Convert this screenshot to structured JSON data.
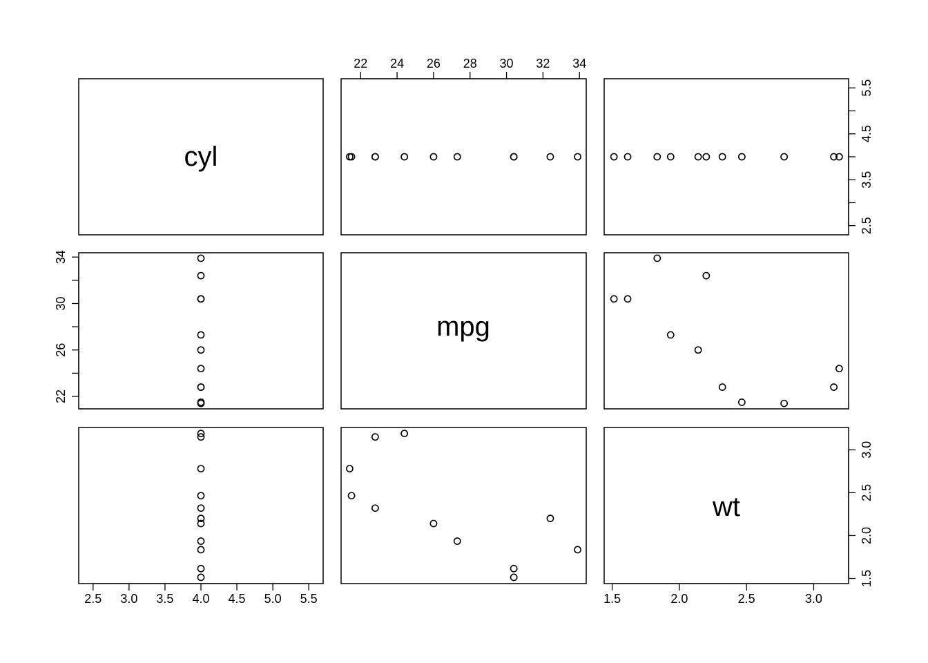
{
  "chart_data": {
    "type": "scatter",
    "title": "",
    "variables": [
      "cyl",
      "mpg",
      "wt"
    ],
    "axes": {
      "cyl": {
        "range": [
          2.3,
          5.7
        ],
        "ticks": [
          2.5,
          3.0,
          3.5,
          4.0,
          4.5,
          5.0,
          5.5
        ],
        "tick_labels": [
          "2.5",
          "3.0",
          "3.5",
          "4.0",
          "4.5",
          "5.0",
          "5.5"
        ],
        "minor_ticks": [
          3.0,
          4.0,
          5.0
        ]
      },
      "mpg": {
        "range": [
          20.93,
          34.37
        ],
        "ticks": [
          22,
          24,
          26,
          28,
          30,
          32,
          34
        ],
        "tick_labels": [
          "22",
          "24",
          "26",
          "28",
          "30",
          "32",
          "34"
        ],
        "minor_ticks": [
          24,
          28,
          32
        ]
      },
      "wt": {
        "range": [
          1.44,
          3.26
        ],
        "ticks": [
          1.5,
          2.0,
          2.5,
          3.0
        ],
        "tick_labels": [
          "1.5",
          "2.0",
          "2.5",
          "3.0"
        ],
        "minor_ticks": []
      }
    },
    "axis_annotations": {
      "cyl_bottom": {
        "ticks": [
          2.5,
          3.0,
          3.5,
          4.0,
          4.5,
          5.0,
          5.5
        ],
        "labels": [
          "2.5",
          "3.0",
          "3.5",
          "4.0",
          "4.5",
          "5.0",
          "5.5"
        ]
      },
      "mpg_top": {
        "ticks": [
          22,
          24,
          26,
          28,
          30,
          32,
          34
        ],
        "labels": [
          "22",
          "24",
          "26",
          "28",
          "30",
          "32",
          "34"
        ]
      },
      "wt_bottom": {
        "ticks": [
          1.5,
          2.0,
          2.5,
          3.0
        ],
        "labels": [
          "1.5",
          "2.0",
          "2.5",
          "3.0"
        ]
      },
      "cyl_right": {
        "ticks": [
          2.5,
          3.0,
          3.5,
          4.0,
          4.5,
          5.0,
          5.5
        ],
        "labels": [
          "2.5",
          "",
          "3.5",
          "",
          "4.5",
          "",
          "5.5"
        ]
      },
      "mpg_left": {
        "ticks": [
          22,
          24,
          26,
          28,
          30,
          32,
          34
        ],
        "labels": [
          "22",
          "",
          "26",
          "",
          "30",
          "",
          "34"
        ]
      },
      "wt_right": {
        "ticks": [
          1.5,
          2.0,
          2.5,
          3.0
        ],
        "labels": [
          "1.5",
          "2.0",
          "2.5",
          "3.0"
        ]
      }
    },
    "grid": false,
    "legend": "none",
    "points": [
      {
        "cyl": 4,
        "mpg": 22.8,
        "wt": 2.32
      },
      {
        "cyl": 4,
        "mpg": 24.4,
        "wt": 3.19
      },
      {
        "cyl": 4,
        "mpg": 22.8,
        "wt": 3.15
      },
      {
        "cyl": 4,
        "mpg": 32.4,
        "wt": 2.2
      },
      {
        "cyl": 4,
        "mpg": 30.4,
        "wt": 1.615
      },
      {
        "cyl": 4,
        "mpg": 33.9,
        "wt": 1.835
      },
      {
        "cyl": 4,
        "mpg": 21.5,
        "wt": 2.465
      },
      {
        "cyl": 4,
        "mpg": 27.3,
        "wt": 1.935
      },
      {
        "cyl": 4,
        "mpg": 26.0,
        "wt": 2.14
      },
      {
        "cyl": 4,
        "mpg": 30.4,
        "wt": 1.513
      },
      {
        "cyl": 4,
        "mpg": 21.4,
        "wt": 2.78
      }
    ]
  }
}
